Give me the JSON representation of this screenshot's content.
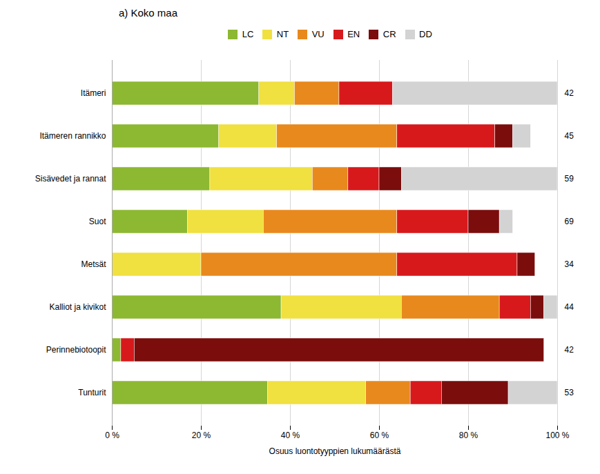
{
  "chart_data": {
    "type": "bar",
    "orientation": "horizontal",
    "stacked": true,
    "title": "a) Koko maa",
    "xlabel": "Osuus luontotyyppien lukumäärästä",
    "categories": [
      "Itämeri",
      "Itämeren rannikko",
      "Sisävedet ja rannat",
      "Suot",
      "Metsät",
      "Kalliot ja kivikot",
      "Perinnebiotoopit",
      "Tunturit"
    ],
    "counts": [
      42,
      45,
      59,
      69,
      34,
      44,
      42,
      53
    ],
    "series": [
      {
        "name": "LC",
        "color": "#8db832",
        "values": [
          33,
          24,
          22,
          17,
          0,
          38,
          2,
          35
        ]
      },
      {
        "name": "NT",
        "color": "#f0e040",
        "values": [
          8,
          13,
          23,
          17,
          20,
          27,
          0,
          22
        ]
      },
      {
        "name": "VU",
        "color": "#e8891d",
        "values": [
          10,
          27,
          8,
          30,
          44,
          22,
          0,
          10
        ]
      },
      {
        "name": "EN",
        "color": "#d7191c",
        "values": [
          12,
          22,
          7,
          16,
          27,
          7,
          3,
          7
        ]
      },
      {
        "name": "CR",
        "color": "#7b0d0d",
        "values": [
          0,
          4,
          5,
          7,
          4,
          3,
          92,
          15
        ]
      },
      {
        "name": "DD",
        "color": "#d3d3d3",
        "values": [
          37,
          4,
          35,
          3,
          0,
          3,
          0,
          11
        ]
      }
    ],
    "xlim": [
      0,
      100
    ],
    "xticks": [
      {
        "value": 0,
        "label": "0 %"
      },
      {
        "value": 20,
        "label": "20 %"
      },
      {
        "value": 40,
        "label": "40 %"
      },
      {
        "value": 60,
        "label": "60 %"
      },
      {
        "value": 80,
        "label": "80 %"
      },
      {
        "value": 100,
        "label": "100 %"
      }
    ],
    "grid": true,
    "legend": "top"
  }
}
